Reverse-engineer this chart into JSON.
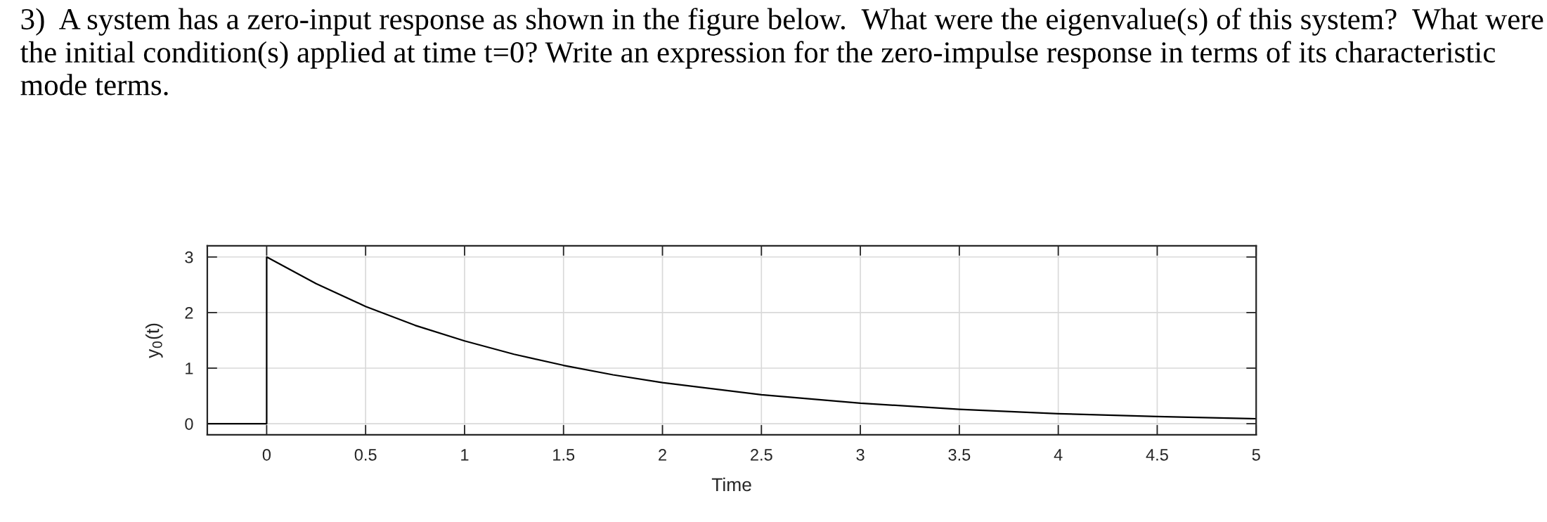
{
  "chart_data": {
    "type": "line",
    "title": "3)  A system has a zero-input response as shown in the figure below.  What were the eigenvalue(s) of this system?  What were the initial condition(s) applied at time t=0? Write an expression for the zero-impulse response in terms of its characteristic mode terms.",
    "xlabel": "Time",
    "ylabel": "y$_{0}$(t)",
    "series": [
      {
        "color": "#000000",
        "x": [
          -0.3,
          0,
          0,
          0.25,
          0.5,
          0.75,
          1,
          1.25,
          1.5,
          1.75,
          2,
          2.5,
          3,
          3.5,
          4,
          4.5,
          5
        ],
        "values": [
          0,
          0,
          3,
          2.52,
          2.11,
          1.77,
          1.49,
          1.25,
          1.05,
          0.88,
          0.74,
          0.52,
          0.37,
          0.26,
          0.18,
          0.13,
          0.09
        ]
      }
    ],
    "xlim": [
      -0.3,
      5
    ],
    "xticks": [
      0,
      0.5,
      1,
      1.5,
      2,
      2.5,
      3,
      3.5,
      4,
      4.5,
      5
    ],
    "ylim": [
      -0.2,
      3.2
    ],
    "yticks": [
      0,
      1,
      2,
      3
    ],
    "grid": true,
    "legend": false,
    "marker": "none",
    "line_style": "solid"
  }
}
